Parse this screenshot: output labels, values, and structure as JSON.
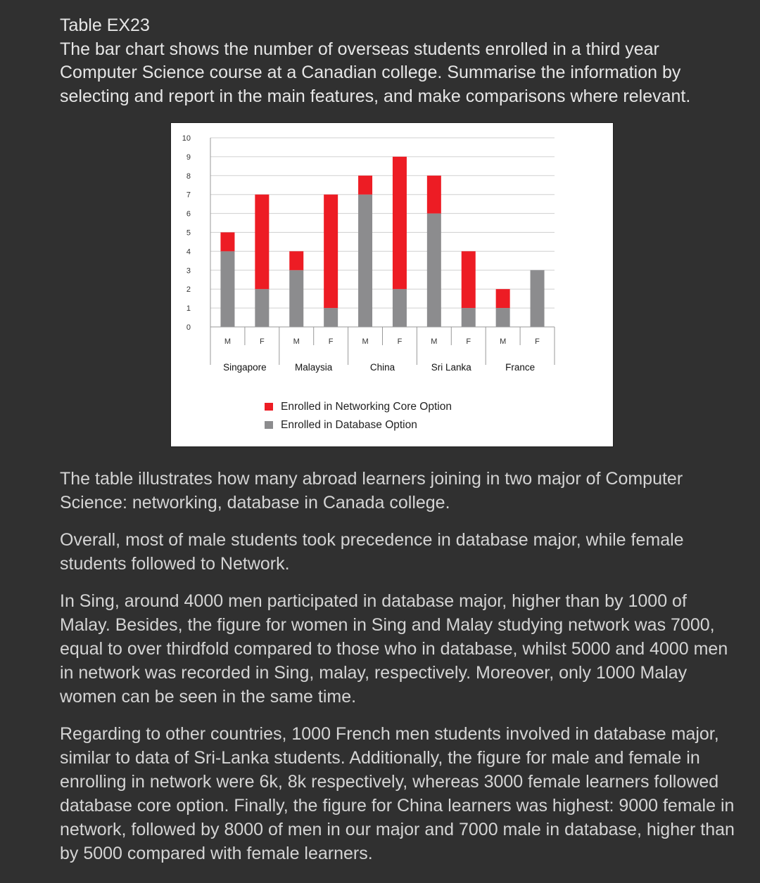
{
  "task": {
    "title": "Table EX23",
    "prompt": "The bar chart shows the number of overseas students enrolled in a third year Computer Science course at a Canadian college. Summarise the information by selecting and report in the main features, and make comparisons where relevant."
  },
  "chart_data": {
    "type": "bar",
    "stacked": true,
    "groups": [
      "Singapore",
      "Malaysia",
      "China",
      "Sri Lanka",
      "France"
    ],
    "categories": [
      "M",
      "F",
      "M",
      "F",
      "M",
      "F",
      "M",
      "F",
      "M",
      "F"
    ],
    "series": [
      {
        "name": "Enrolled in Database Option",
        "color": "#8c8c8e",
        "values": [
          4,
          2,
          3,
          1,
          7,
          2,
          6,
          1,
          1,
          3
        ]
      },
      {
        "name": "Enrolled in Networking Core Option",
        "color": "#ed1c24",
        "values": [
          1,
          5,
          1,
          6,
          1,
          7,
          2,
          3,
          1,
          0
        ]
      }
    ],
    "legend_order": [
      "Enrolled in Networking Core Option",
      "Enrolled in Database Option"
    ],
    "yticks": [
      "0",
      "1",
      "2",
      "3",
      "4",
      "5",
      "6",
      "7",
      "8",
      "9",
      "10"
    ],
    "ylim": [
      0,
      10
    ],
    "grid": true,
    "legend_position": "bottom-center"
  },
  "essay": [
    "The table illustrates how many abroad learners joining in two major of Computer Science: networking, database in Canada college.",
    "Overall, most of male students took precedence in database major, while female students followed to Network.",
    "In Sing, around 4000 men participated in database major, higher than by 1000 of Malay. Besides, the figure for women in Sing and Malay studying network was 7000, equal to over thirdfold compared to those who in database, whilst 5000 and 4000 men in network was recorded in Sing, malay, respectively. Moreover, only 1000 Malay women can be seen in the same time.",
    "Regarding to other countries, 1000 French men students involved in database major, similar to data of Sri-Lanka students. Additionally, the figure for male and female in enrolling in network were 6k, 8k respectively, whereas 3000 female learners followed database core option. Finally, the figure for China learners was highest: 9000 female in network, followed by 8000 of men in our major and 7000 male in database, higher than by 5000 compared with female learners."
  ]
}
